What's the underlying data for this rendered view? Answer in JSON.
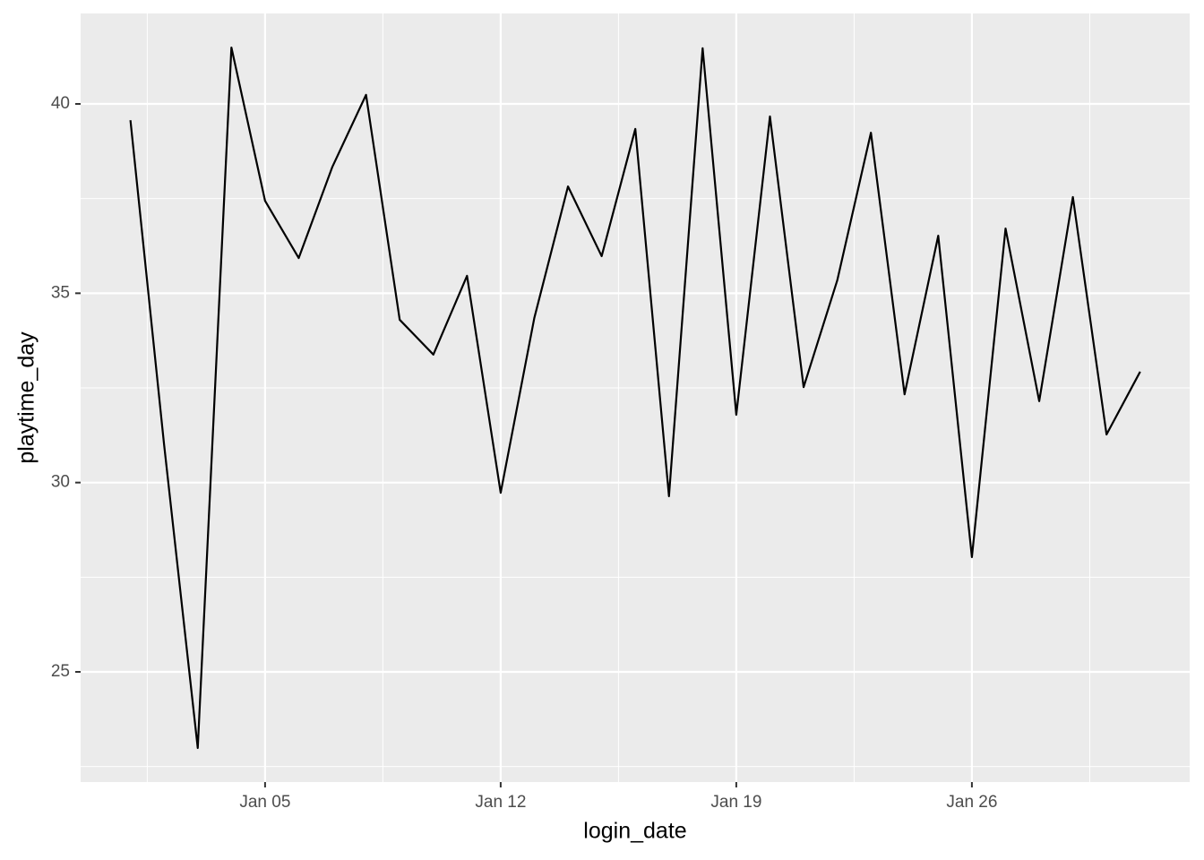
{
  "chart_data": {
    "type": "line",
    "x_label": "login_date",
    "y_label": "playtime_day",
    "x": [
      1,
      2,
      3,
      4,
      5,
      6,
      7,
      8,
      9,
      10,
      11,
      12,
      13,
      14,
      15,
      16,
      17,
      18,
      19,
      20,
      21,
      22,
      23,
      24,
      25,
      26,
      27,
      28,
      29,
      30,
      31
    ],
    "series": [
      {
        "name": "playtime_day",
        "color": "#000000",
        "values": [
          39.57,
          31.0,
          22.99,
          41.49,
          37.44,
          35.93,
          38.34,
          40.24,
          34.3,
          33.38,
          35.46,
          29.73,
          34.35,
          37.82,
          35.98,
          39.34,
          29.64,
          41.47,
          31.79,
          39.67,
          32.52,
          35.34,
          39.24,
          32.33,
          36.52,
          28.03,
          36.71,
          32.15,
          37.54,
          31.27,
          32.93
        ]
      }
    ],
    "xlim": [
      -0.48,
      32.47
    ],
    "xticks": [
      {
        "value": 5,
        "label": "Jan 05"
      },
      {
        "value": 12,
        "label": "Jan 12"
      },
      {
        "value": 19,
        "label": "Jan 19"
      },
      {
        "value": 26,
        "label": "Jan 26"
      }
    ],
    "ylim": [
      22.09,
      42.39
    ],
    "yticks": [
      25,
      30,
      35,
      40
    ],
    "grid": true
  }
}
